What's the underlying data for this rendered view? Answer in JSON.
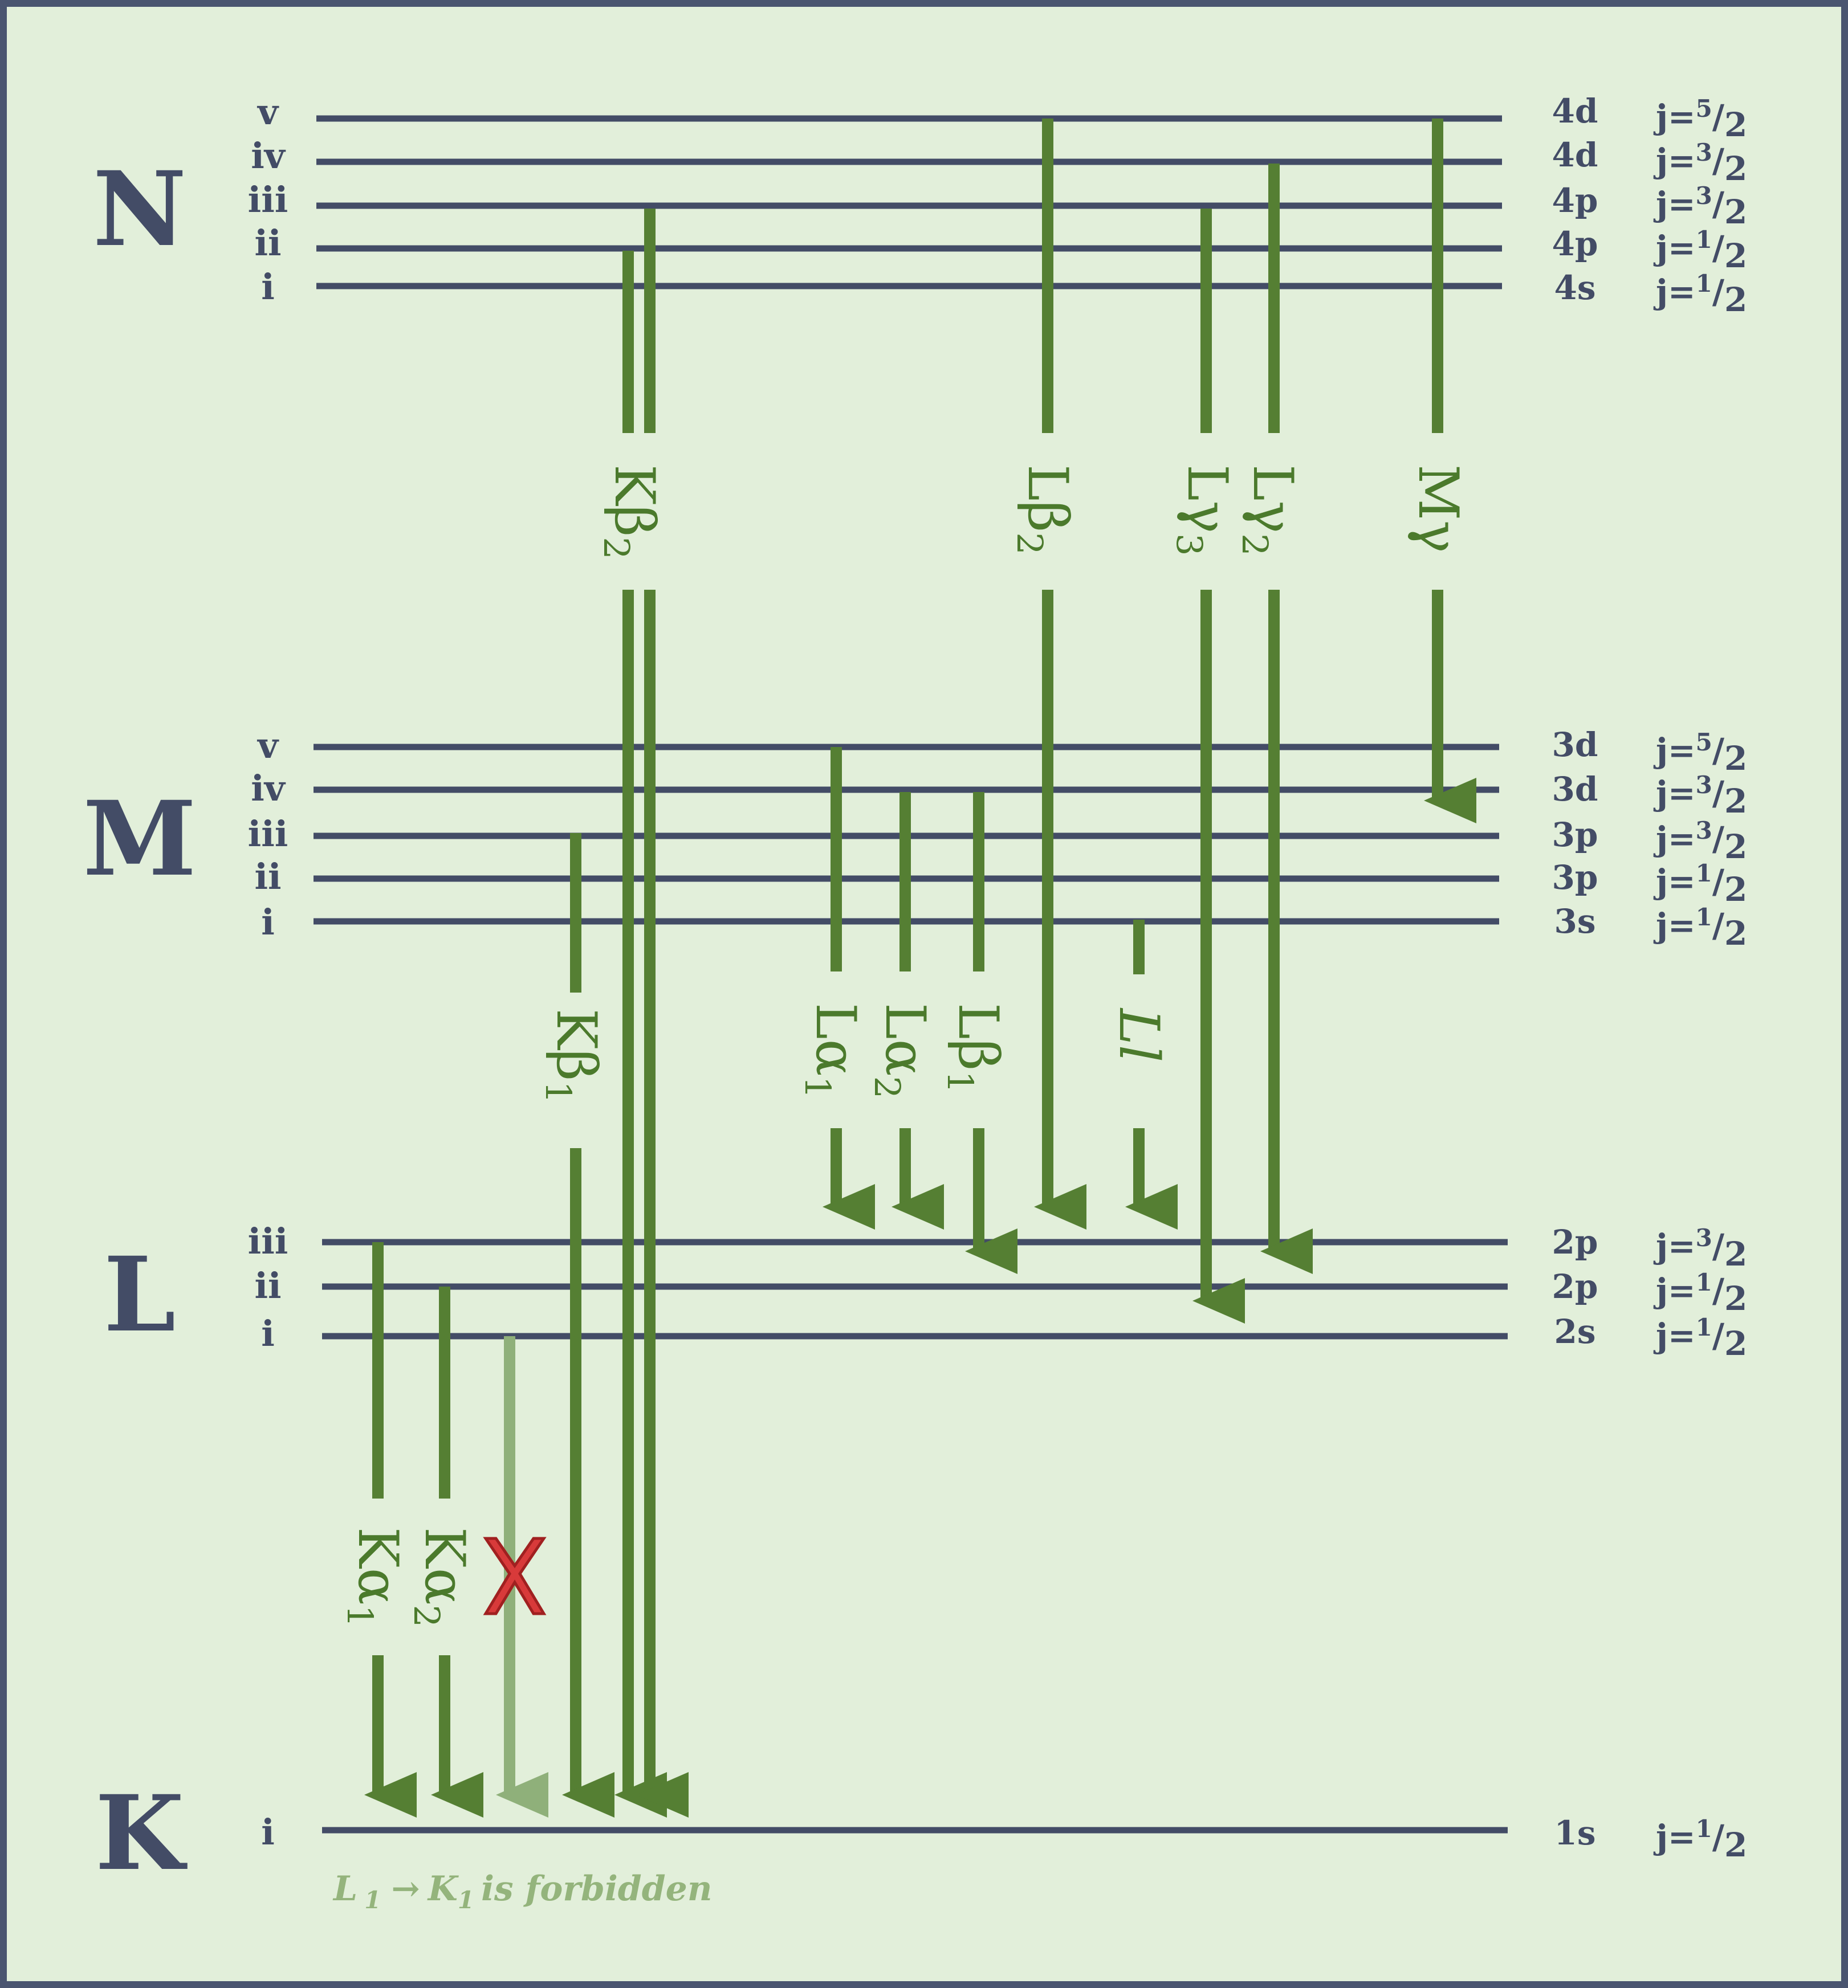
{
  "colors": {
    "background": "#e2efda",
    "border": "#4a5570",
    "level_line": "#434c66",
    "transition": "#557f33",
    "forbidden_transition": "#8fb07a",
    "forbidden_mark": "#cf3030"
  },
  "shells": {
    "N": {
      "name": "N",
      "levels": [
        {
          "roman": "v",
          "orbital": "4d",
          "j": "5"
        },
        {
          "roman": "iv",
          "orbital": "4d",
          "j": "3"
        },
        {
          "roman": "iii",
          "orbital": "4p",
          "j": "3"
        },
        {
          "roman": "ii",
          "orbital": "4p",
          "j": "1"
        },
        {
          "roman": "i",
          "orbital": "4s",
          "j": "1"
        }
      ]
    },
    "M": {
      "name": "M",
      "levels": [
        {
          "roman": "v",
          "orbital": "3d",
          "j": "5"
        },
        {
          "roman": "iv",
          "orbital": "3d",
          "j": "3"
        },
        {
          "roman": "iii",
          "orbital": "3p",
          "j": "3"
        },
        {
          "roman": "ii",
          "orbital": "3p",
          "j": "1"
        },
        {
          "roman": "i",
          "orbital": "3s",
          "j": "1"
        }
      ]
    },
    "L": {
      "name": "L",
      "levels": [
        {
          "roman": "iii",
          "orbital": "2p",
          "j": "3"
        },
        {
          "roman": "ii",
          "orbital": "2p",
          "j": "1"
        },
        {
          "roman": "i",
          "orbital": "2s",
          "j": "1"
        }
      ]
    },
    "K": {
      "name": "K",
      "levels": [
        {
          "roman": "i",
          "orbital": "1s",
          "j": "1"
        }
      ]
    }
  },
  "j_prefix": "j=",
  "j_slash": "/",
  "j_denominator": "2",
  "transitions": {
    "Kb2": {
      "main": "Kβ",
      "sub": "2"
    },
    "Lb2": {
      "main": "Lβ",
      "sub": "2"
    },
    "Lg3": {
      "main": "Lγ",
      "sub": "3"
    },
    "Lg2": {
      "main": "Lγ",
      "sub": "2"
    },
    "Mg": {
      "main": "Mγ",
      "sub": ""
    },
    "Kb1": {
      "main": "Kβ",
      "sub": "1"
    },
    "La1": {
      "main": "Lα",
      "sub": "1"
    },
    "La2": {
      "main": "Lα",
      "sub": "2"
    },
    "Lb1": {
      "main": "Lβ",
      "sub": "1"
    },
    "Ll": {
      "main": "Ll",
      "sub": ""
    },
    "Ka1": {
      "main": "Kα",
      "sub": "1"
    },
    "Ka2": {
      "main": "Kα",
      "sub": "2"
    }
  },
  "forbidden_note": {
    "l": "L",
    "l_sub": "1",
    "arrow": "→",
    "k": "K",
    "k_sub": "1",
    "text": "is forbidden"
  }
}
